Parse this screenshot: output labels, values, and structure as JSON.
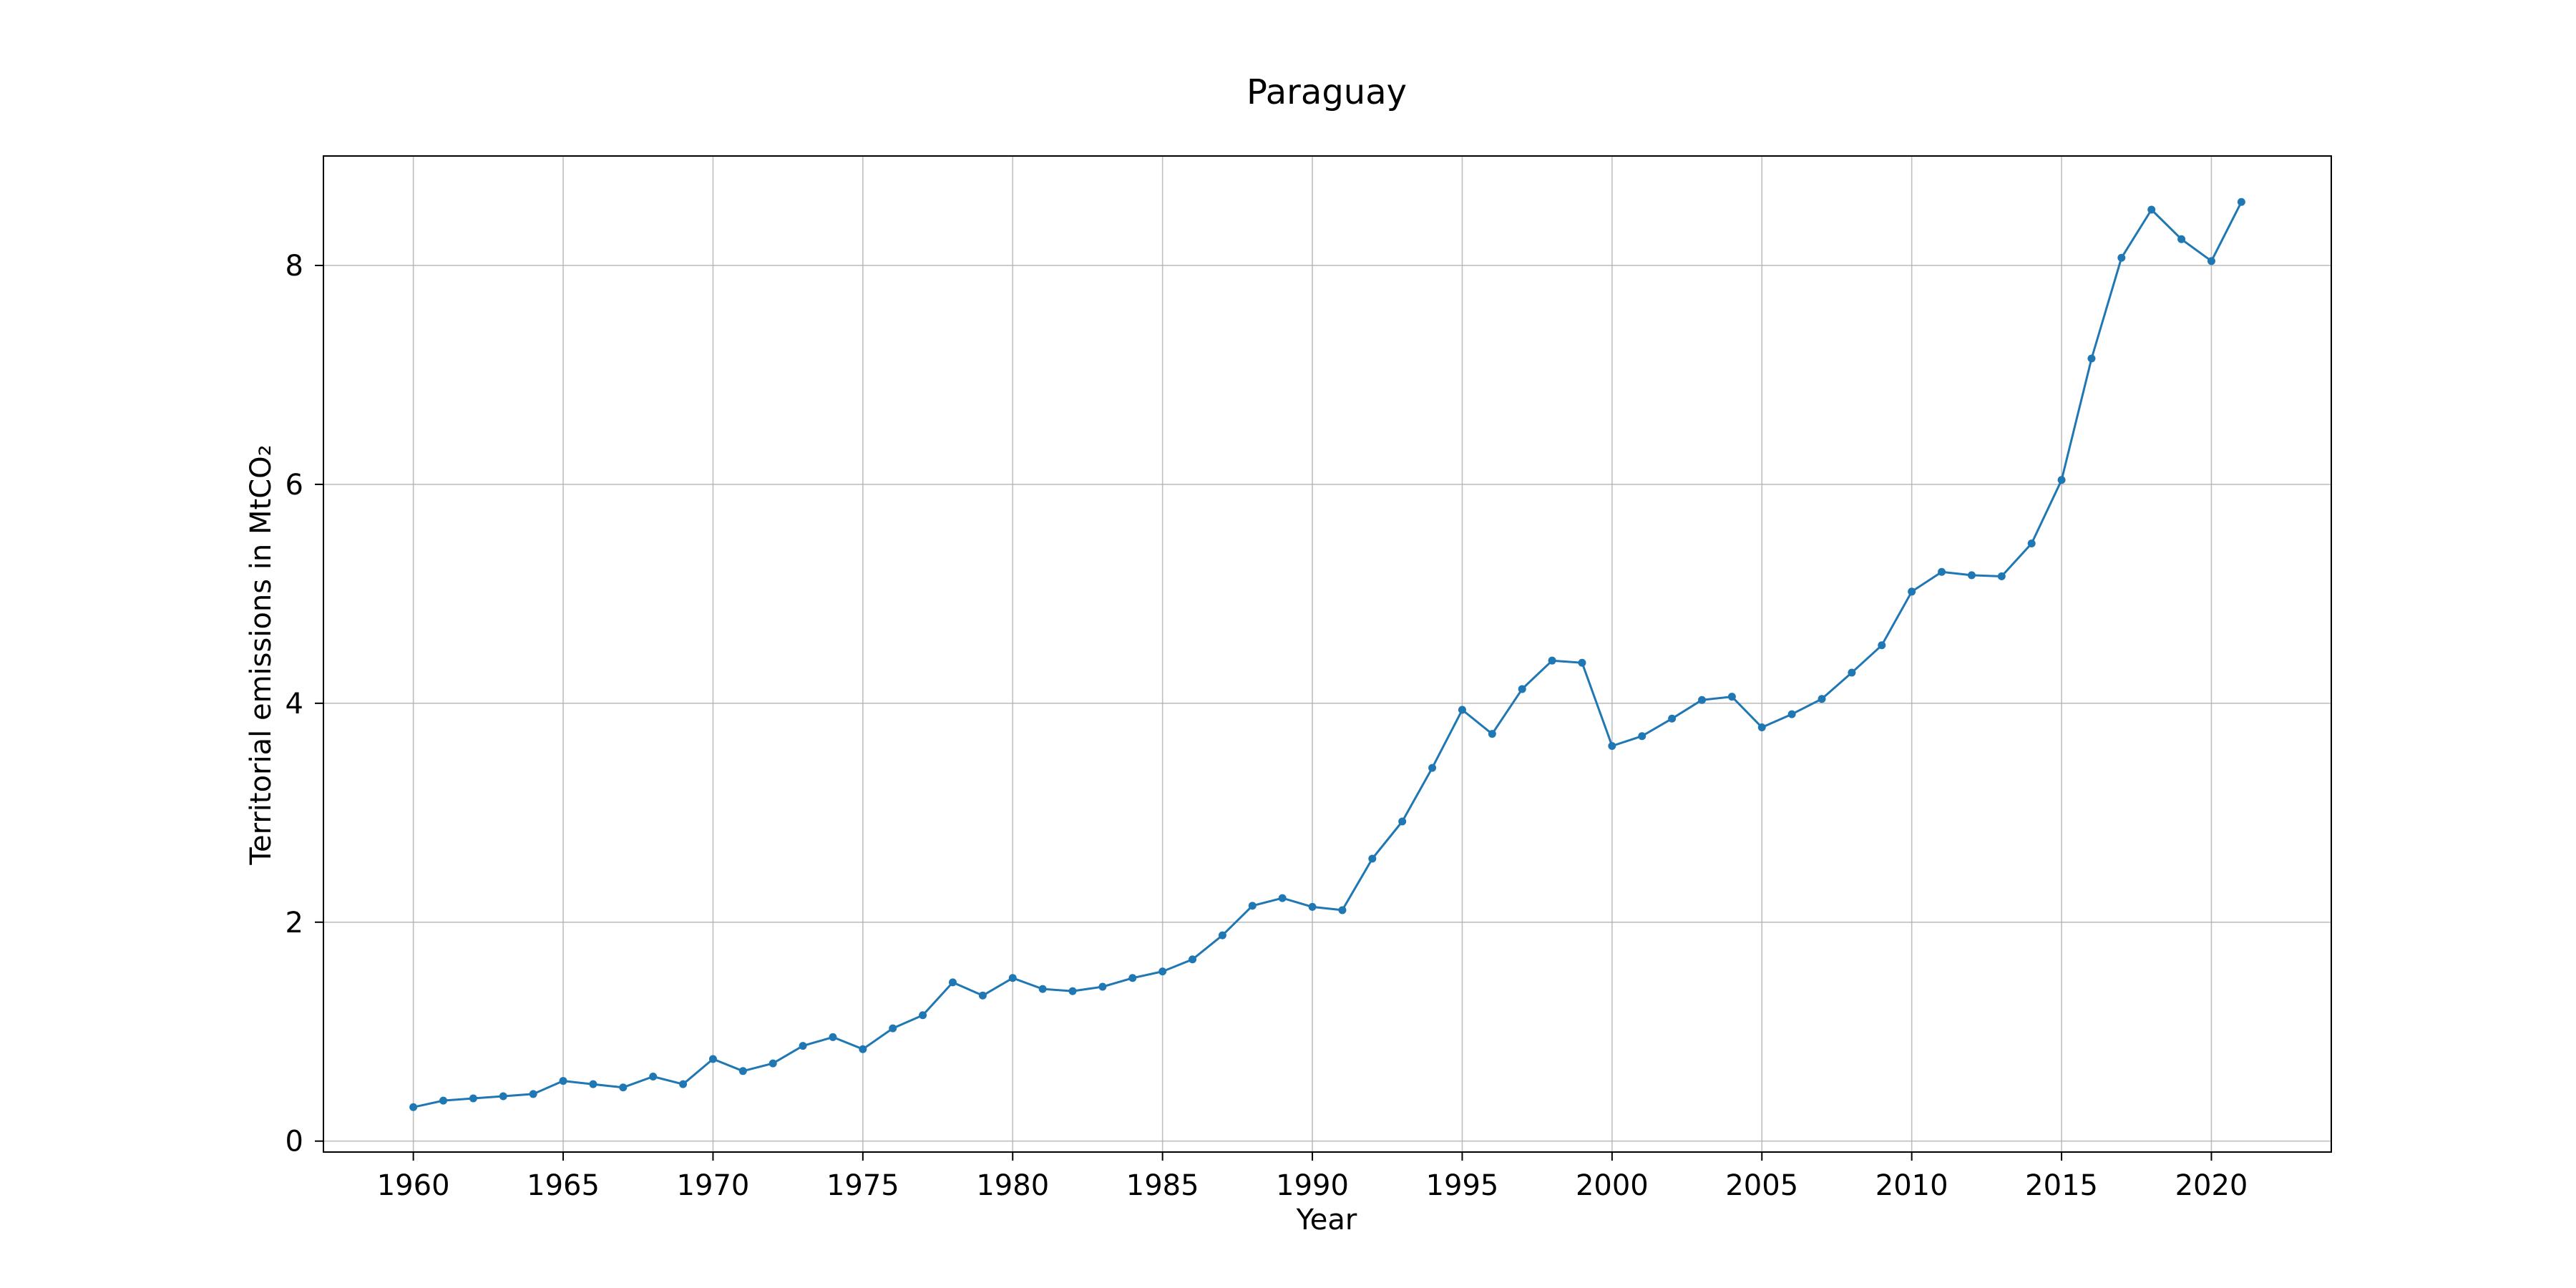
{
  "chart_data": {
    "type": "line",
    "title": "Paraguay",
    "xlabel": "Year",
    "ylabel": "Territorial emissions in MtCO₂",
    "xlim": [
      1957,
      2024
    ],
    "ylim": [
      -0.1,
      9.0
    ],
    "grid": true,
    "series_color": "#1f77b4",
    "x_ticks": [
      1960,
      1965,
      1970,
      1975,
      1980,
      1985,
      1990,
      1995,
      2000,
      2005,
      2010,
      2015,
      2020
    ],
    "x_tick_labels": [
      "1960",
      "1965",
      "1970",
      "1975",
      "1980",
      "1985",
      "1990",
      "1995",
      "2000",
      "2005",
      "2010",
      "2015",
      "2020"
    ],
    "y_ticks": [
      0,
      2,
      4,
      6,
      8
    ],
    "y_tick_labels": [
      "0",
      "2",
      "4",
      "6",
      "8"
    ],
    "series": [
      {
        "x": [
          1960,
          1961,
          1962,
          1963,
          1964,
          1965,
          1966,
          1967,
          1968,
          1969,
          1970,
          1971,
          1972,
          1973,
          1974,
          1975,
          1976,
          1977,
          1978,
          1979,
          1980,
          1981,
          1982,
          1983,
          1984,
          1985,
          1986,
          1987,
          1988,
          1989,
          1990,
          1991,
          1992,
          1993,
          1994,
          1995,
          1996,
          1997,
          1998,
          1999,
          2000,
          2001,
          2002,
          2003,
          2004,
          2005,
          2006,
          2007,
          2008,
          2009,
          2010,
          2011,
          2012,
          2013,
          2014,
          2015,
          2016,
          2017,
          2018,
          2019,
          2020,
          2021
        ],
        "values": [
          0.31,
          0.37,
          0.39,
          0.41,
          0.43,
          0.55,
          0.52,
          0.49,
          0.59,
          0.52,
          0.75,
          0.64,
          0.71,
          0.87,
          0.95,
          0.84,
          1.03,
          1.15,
          1.45,
          1.33,
          1.49,
          1.39,
          1.37,
          1.41,
          1.49,
          1.55,
          1.66,
          1.88,
          2.15,
          2.22,
          2.14,
          2.11,
          2.58,
          2.92,
          3.41,
          3.94,
          3.72,
          4.13,
          4.39,
          4.37,
          3.61,
          3.7,
          3.86,
          4.03,
          4.06,
          3.78,
          3.9,
          4.04,
          4.28,
          4.53,
          5.02,
          5.2,
          5.17,
          5.16,
          5.46,
          6.04,
          7.15,
          8.07,
          8.51,
          8.24,
          8.04,
          8.58
        ]
      }
    ]
  }
}
